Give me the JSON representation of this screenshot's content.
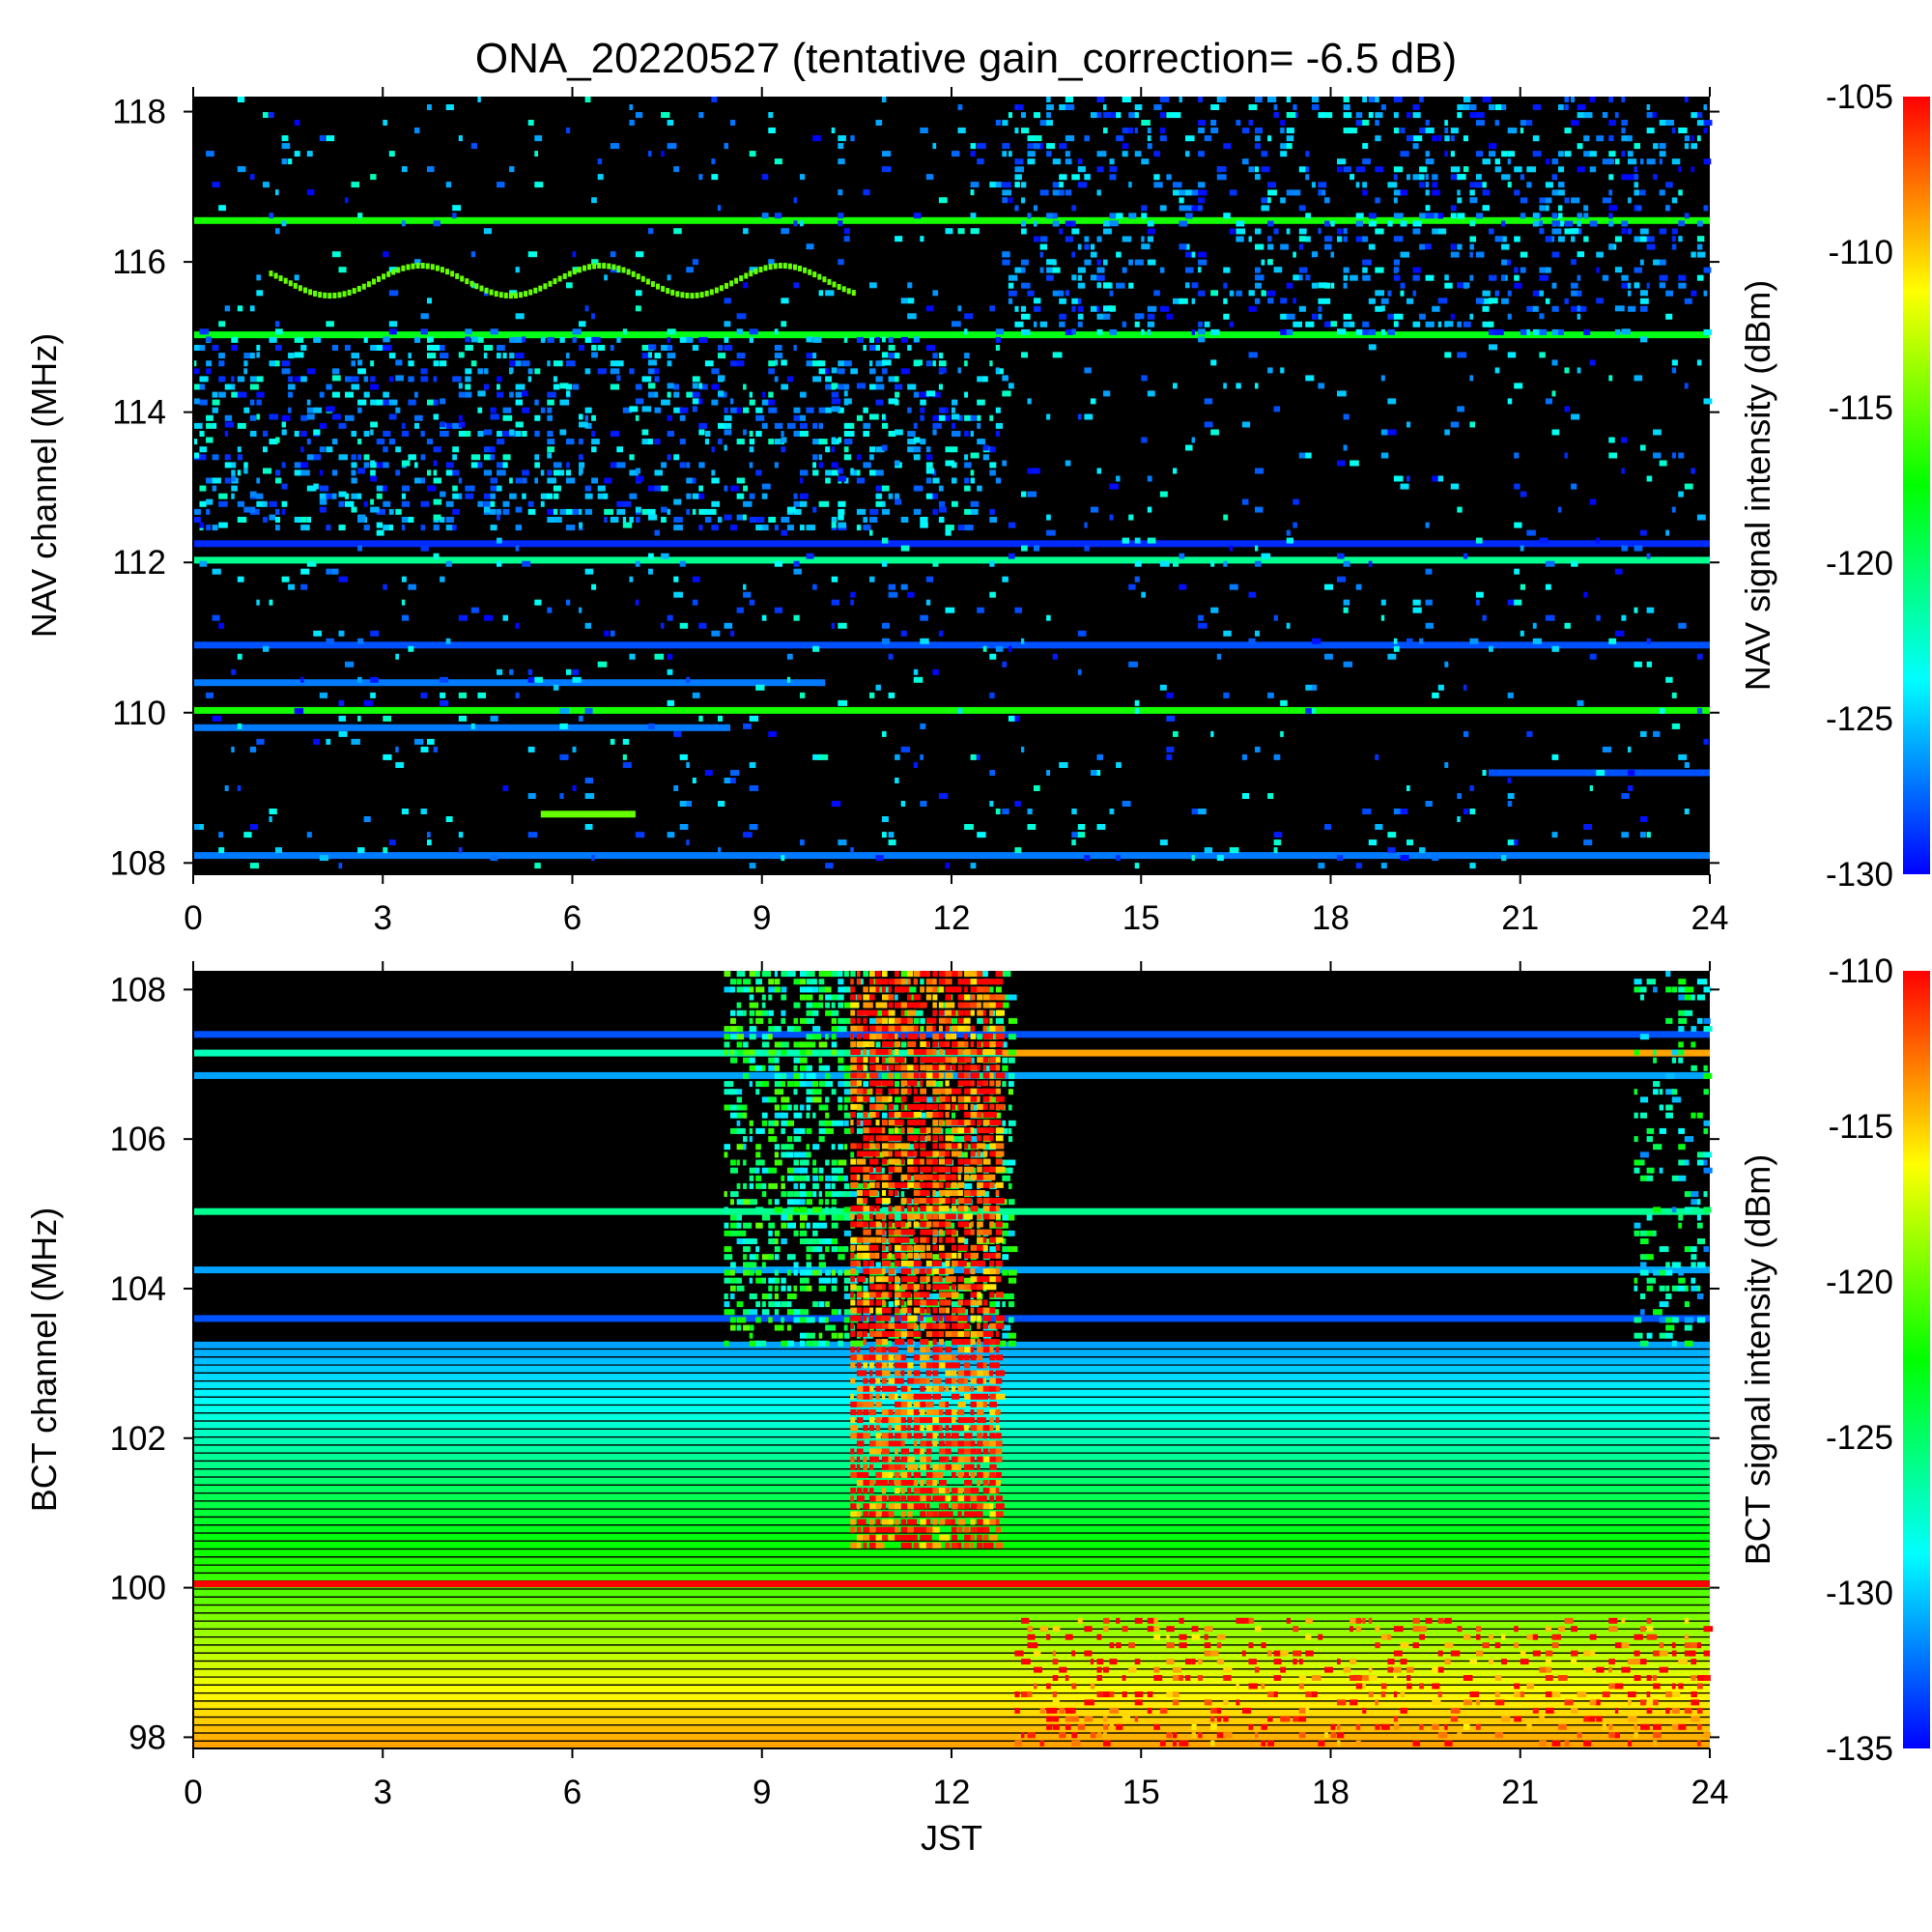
{
  "title": "ONA_20220527 (tentative gain_correction= -6.5 dB)",
  "colormap": [
    "#0000ff",
    "#00ffff",
    "#00ff00",
    "#ffff00",
    "#ff0000"
  ],
  "background_color": "#000000",
  "chart_data": [
    {
      "type": "heatmap",
      "name": "NAV",
      "ylabel": "NAV channel (MHz)",
      "xlabel": "",
      "colorbar_label": "NAV signal intensity (dBm)",
      "xlim": [
        0,
        24
      ],
      "ylim": [
        107.85,
        118.2
      ],
      "xticks": [
        0,
        3,
        6,
        9,
        12,
        15,
        18,
        21,
        24
      ],
      "yticks": [
        108,
        110,
        112,
        114,
        116,
        118
      ],
      "clim": [
        -130,
        -105
      ],
      "cticks": [
        -130,
        -125,
        -120,
        -115,
        -110,
        -105
      ],
      "background_level_dBm": -135,
      "features": [
        {
          "kind": "band",
          "freq": 116.55,
          "t0": 0,
          "t1": 24,
          "dBm": -117
        },
        {
          "kind": "band",
          "freq": 115.03,
          "t0": 0,
          "t1": 24,
          "dBm": -118
        },
        {
          "kind": "band",
          "freq": 112.03,
          "t0": 0,
          "t1": 24,
          "dBm": -121
        },
        {
          "kind": "band",
          "freq": 110.03,
          "t0": 0,
          "t1": 24,
          "dBm": -117
        },
        {
          "kind": "band",
          "freq": 109.8,
          "t0": 0,
          "t1": 8.5,
          "dBm": -127
        },
        {
          "kind": "band",
          "freq": 110.4,
          "t0": 0,
          "t1": 10,
          "dBm": -127
        },
        {
          "kind": "band",
          "freq": 110.9,
          "t0": 0,
          "t1": 24,
          "dBm": -128
        },
        {
          "kind": "band",
          "freq": 112.25,
          "t0": 0,
          "t1": 24,
          "dBm": -129
        },
        {
          "kind": "band",
          "freq": 108.1,
          "t0": 0,
          "t1": 24,
          "dBm": -127
        },
        {
          "kind": "band",
          "freq": 109.2,
          "t0": 20.5,
          "t1": 24,
          "dBm": -128
        },
        {
          "kind": "band",
          "freq": 108.65,
          "t0": 5.5,
          "t1": 7.0,
          "dBm": -115
        },
        {
          "kind": "noise",
          "f0": 112.4,
          "f1": 115.0,
          "t0": 0,
          "t1": 12.8,
          "density": 0.35,
          "dBm": -127
        },
        {
          "kind": "noise",
          "f0": 115.0,
          "f1": 118.2,
          "t0": 12.8,
          "t1": 24,
          "density": 0.3,
          "dBm": -128
        },
        {
          "kind": "noise",
          "f0": 107.9,
          "f1": 118.2,
          "t0": 0,
          "t1": 24,
          "density": 0.06,
          "dBm": -127
        },
        {
          "kind": "wave",
          "freq": 115.75,
          "amplitude": 0.2,
          "t0": 1.2,
          "t1": 10.5,
          "dBm": -115
        }
      ]
    },
    {
      "type": "heatmap",
      "name": "BCT",
      "ylabel": "BCT channel (MHz)",
      "xlabel": "JST",
      "colorbar_label": "BCT signal intensity (dBm)",
      "xlim": [
        0,
        24
      ],
      "ylim": [
        97.85,
        108.25
      ],
      "xticks": [
        0,
        3,
        6,
        9,
        12,
        15,
        18,
        21,
        24
      ],
      "yticks": [
        98,
        100,
        102,
        104,
        106,
        108
      ],
      "clim": [
        -135,
        -110
      ],
      "cticks": [
        -135,
        -130,
        -125,
        -120,
        -115,
        -110
      ],
      "background_level_dBm": -140,
      "features": [
        {
          "kind": "gradient",
          "f0": 97.85,
          "f1": 103.2,
          "dBm_low_freq": -114,
          "dBm_high_freq": -131
        },
        {
          "kind": "band",
          "freq": 100.05,
          "t0": 0,
          "t1": 24,
          "dBm": -110
        },
        {
          "kind": "band",
          "freq": 107.15,
          "t0": 0,
          "t1": 12.8,
          "dBm": -127
        },
        {
          "kind": "band",
          "freq": 107.15,
          "t0": 12.8,
          "t1": 24,
          "dBm": -114
        },
        {
          "kind": "band",
          "freq": 106.85,
          "t0": 0,
          "t1": 24,
          "dBm": -131
        },
        {
          "kind": "band",
          "freq": 105.03,
          "t0": 0,
          "t1": 24,
          "dBm": -126
        },
        {
          "kind": "band",
          "freq": 104.25,
          "t0": 0,
          "t1": 24,
          "dBm": -131
        },
        {
          "kind": "band",
          "freq": 107.4,
          "t0": 0,
          "t1": 24,
          "dBm": -133
        },
        {
          "kind": "band",
          "freq": 103.6,
          "t0": 0,
          "t1": 24,
          "dBm": -133
        },
        {
          "kind": "noise",
          "f0": 103.2,
          "f1": 108.25,
          "t0": 8.4,
          "t1": 13.0,
          "density": 0.55,
          "dBm": -125
        },
        {
          "kind": "noise",
          "f0": 100.5,
          "f1": 108.25,
          "t0": 10.4,
          "t1": 12.8,
          "density": 0.85,
          "dBm": -111
        },
        {
          "kind": "noise",
          "f0": 97.85,
          "f1": 99.6,
          "t0": 13.0,
          "t1": 24,
          "density": 0.25,
          "dBm": -111
        },
        {
          "kind": "noise",
          "f0": 103.2,
          "f1": 108.25,
          "t0": 22.8,
          "t1": 24,
          "density": 0.3,
          "dBm": -127
        }
      ]
    }
  ]
}
